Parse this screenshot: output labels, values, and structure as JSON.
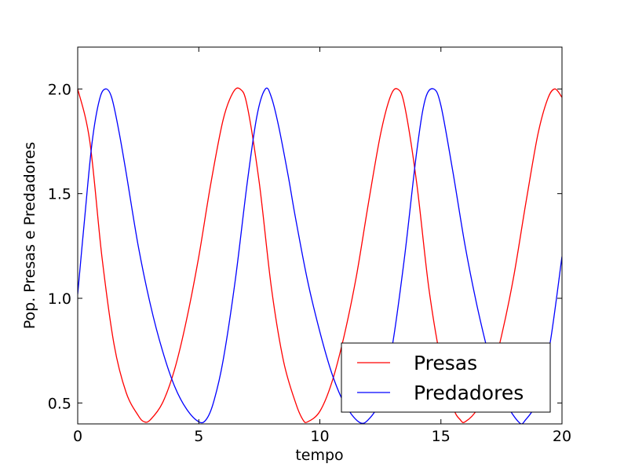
{
  "chart_data": {
    "type": "line",
    "title": "",
    "xlabel": "tempo",
    "ylabel": "Pop. Presas e Predadores",
    "xlim": [
      0,
      20
    ],
    "ylim": [
      0.4,
      2.2
    ],
    "xticks": [
      0,
      5,
      10,
      15,
      20
    ],
    "xtick_labels": [
      "0",
      "5",
      "10",
      "15",
      "20"
    ],
    "yticks": [
      0.5,
      1.0,
      1.5,
      2.0
    ],
    "ytick_labels": [
      "0.5",
      "1.0",
      "1.5",
      "2.0"
    ],
    "grid": false,
    "legend_position": "lower-right",
    "series": [
      {
        "name": "Presas",
        "color": "#ff0000",
        "x": [
          0,
          0.5,
          1.0,
          1.5,
          2.0,
          2.5,
          2.75,
          3.0,
          3.5,
          4.0,
          4.5,
          5.0,
          5.5,
          6.0,
          6.4,
          6.7,
          7.0,
          7.5,
          8.0,
          8.5,
          9.0,
          9.3,
          9.5,
          10.0,
          10.5,
          11.0,
          11.5,
          12.0,
          12.5,
          12.9,
          13.2,
          13.5,
          14.0,
          14.5,
          15.0,
          15.5,
          15.8,
          16.0,
          16.5,
          17.0,
          17.5,
          18.0,
          18.5,
          19.0,
          19.4,
          19.7,
          20.0
        ],
        "y": [
          2.0,
          1.75,
          1.2,
          0.78,
          0.55,
          0.44,
          0.41,
          0.42,
          0.5,
          0.66,
          0.9,
          1.2,
          1.55,
          1.85,
          1.98,
          2.0,
          1.92,
          1.55,
          1.05,
          0.7,
          0.5,
          0.42,
          0.41,
          0.46,
          0.6,
          0.82,
          1.1,
          1.45,
          1.78,
          1.96,
          2.0,
          1.92,
          1.55,
          1.05,
          0.7,
          0.48,
          0.42,
          0.41,
          0.47,
          0.6,
          0.82,
          1.1,
          1.45,
          1.78,
          1.95,
          2.0,
          1.96
        ]
      },
      {
        "name": "Predadores",
        "color": "#0000ff",
        "x": [
          0,
          0.3,
          0.6,
          0.9,
          1.15,
          1.4,
          1.7,
          2.0,
          2.5,
          3.0,
          3.5,
          4.0,
          4.5,
          5.0,
          5.3,
          5.6,
          6.0,
          6.5,
          7.0,
          7.4,
          7.75,
          8.0,
          8.3,
          8.7,
          9.0,
          9.5,
          10.0,
          10.5,
          11.0,
          11.6,
          12.0,
          12.5,
          13.0,
          13.5,
          14.0,
          14.35,
          14.7,
          15.0,
          15.5,
          16.0,
          16.5,
          17.0,
          17.5,
          18.2,
          18.5,
          19.0,
          19.5,
          20.0
        ],
        "y": [
          1.02,
          1.4,
          1.75,
          1.95,
          2.0,
          1.96,
          1.8,
          1.6,
          1.25,
          0.97,
          0.75,
          0.58,
          0.47,
          0.41,
          0.42,
          0.5,
          0.7,
          1.08,
          1.55,
          1.87,
          2.0,
          1.96,
          1.82,
          1.58,
          1.38,
          1.08,
          0.84,
          0.64,
          0.5,
          0.41,
          0.42,
          0.52,
          0.78,
          1.2,
          1.7,
          1.95,
          2.0,
          1.92,
          1.6,
          1.25,
          0.96,
          0.72,
          0.54,
          0.41,
          0.42,
          0.52,
          0.78,
          1.2
        ]
      }
    ]
  }
}
